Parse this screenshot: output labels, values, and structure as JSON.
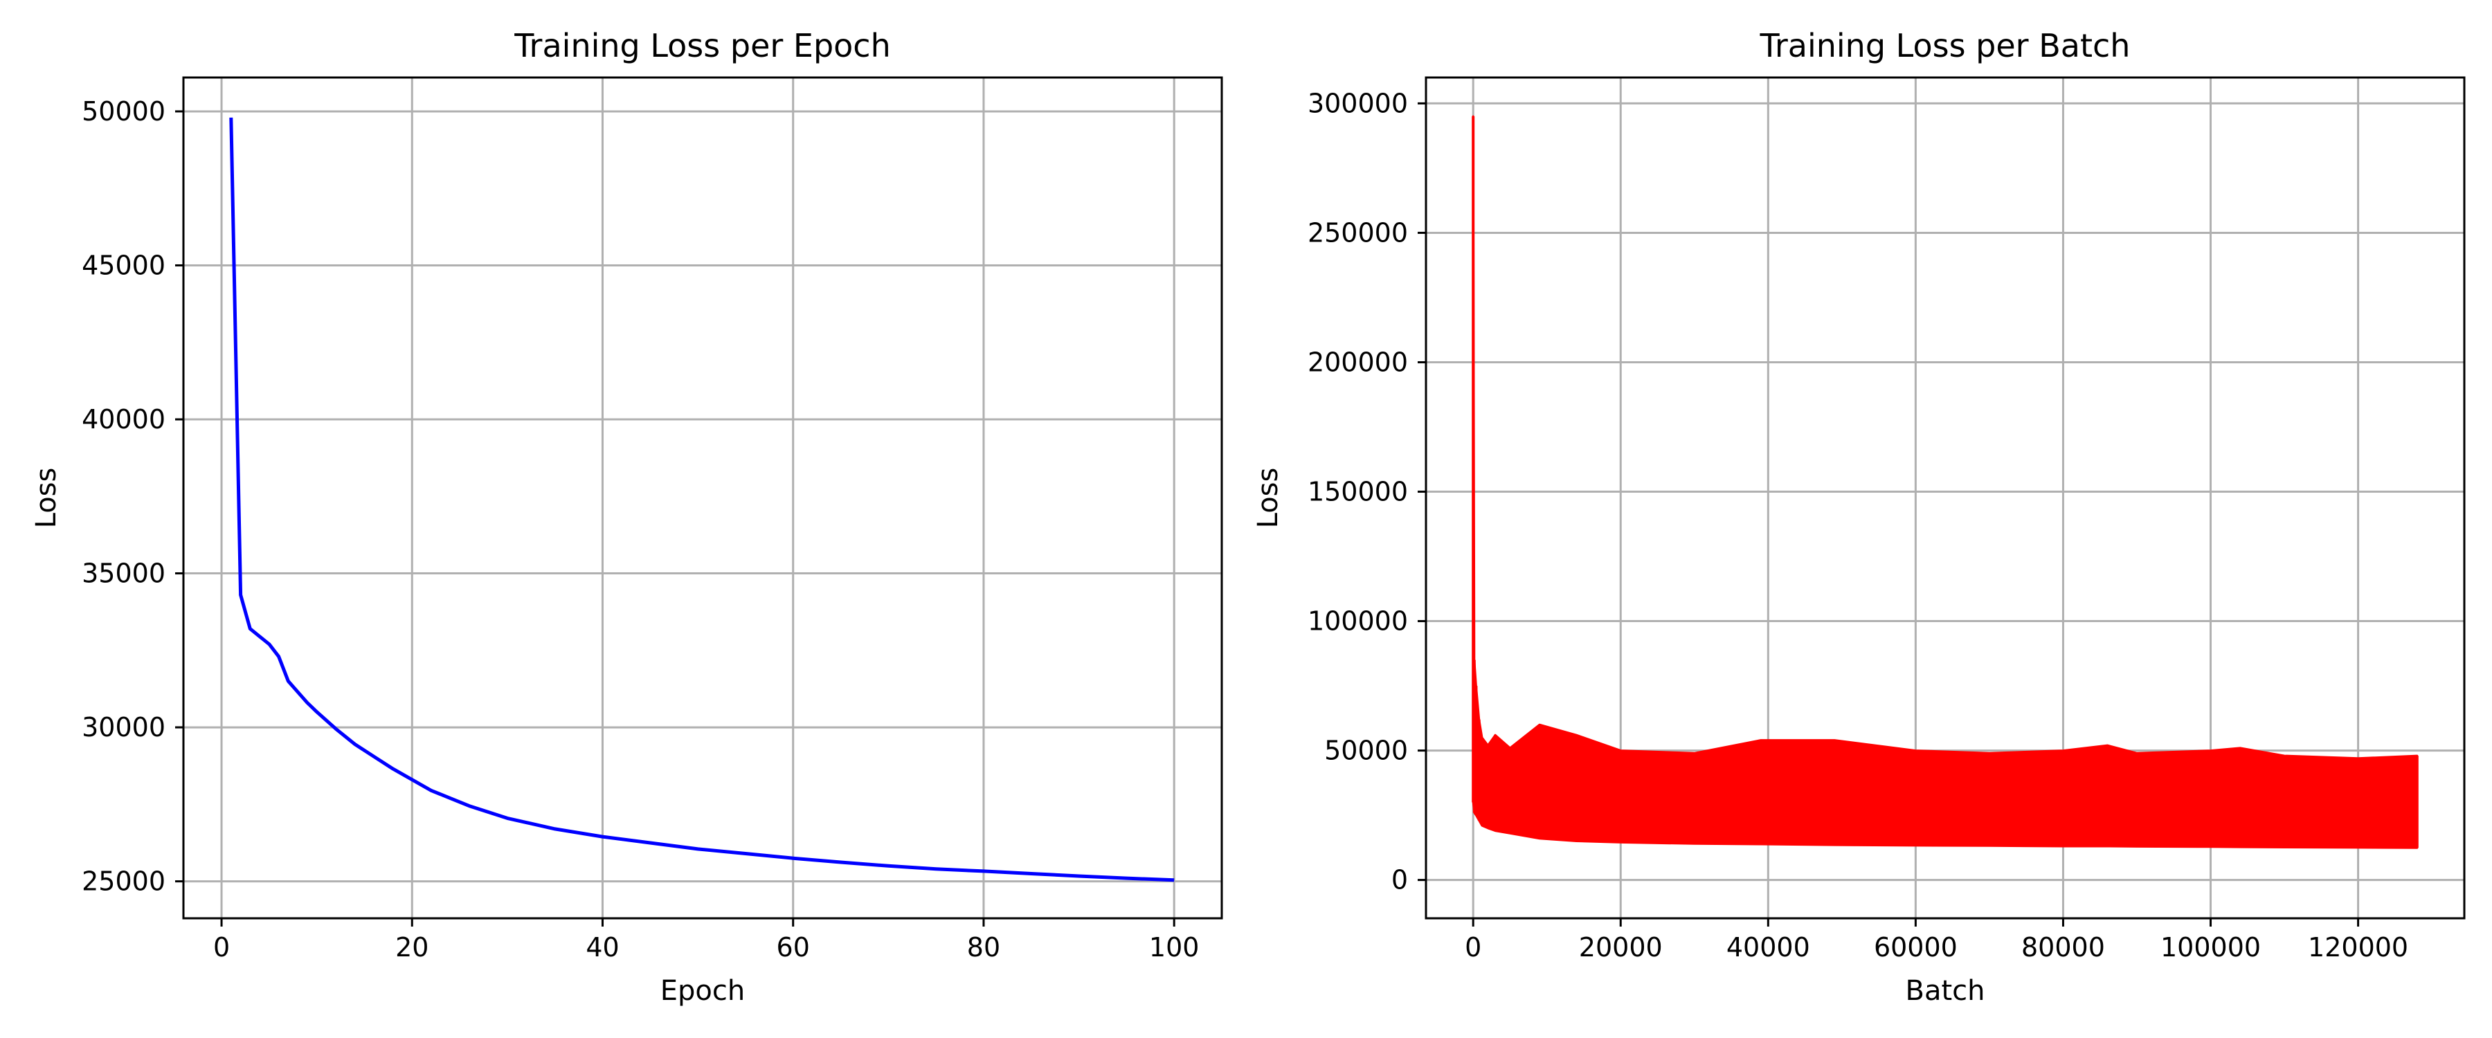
{
  "chart_data": [
    {
      "type": "line",
      "title": "Training Loss per Epoch",
      "xlabel": "Epoch",
      "ylabel": "Loss",
      "xlim": [
        -4,
        105
      ],
      "ylim": [
        23800,
        51100
      ],
      "xticks": [
        0,
        20,
        40,
        60,
        80,
        100
      ],
      "yticks": [
        25000,
        30000,
        35000,
        40000,
        45000,
        50000
      ],
      "grid": true,
      "series": [
        {
          "color": "#0000ff",
          "x": [
            1,
            2,
            3,
            4,
            5,
            6,
            7,
            8,
            9,
            10,
            12,
            14,
            16,
            18,
            20,
            22,
            24,
            26,
            28,
            30,
            35,
            40,
            45,
            50,
            55,
            60,
            65,
            70,
            75,
            80,
            85,
            90,
            95,
            100
          ],
          "y": [
            49800,
            34300,
            33200,
            32950,
            32700,
            32300,
            31500,
            31150,
            30800,
            30500,
            29950,
            29450,
            29050,
            28650,
            28300,
            27950,
            27700,
            27450,
            27250,
            27050,
            26700,
            26450,
            26250,
            26050,
            25900,
            25750,
            25620,
            25500,
            25400,
            25330,
            25250,
            25170,
            25100,
            25040
          ]
        }
      ]
    },
    {
      "type": "line",
      "title": "Training Loss per Batch",
      "xlabel": "Batch",
      "ylabel": "Loss",
      "xlim": [
        -6400,
        134400
      ],
      "ylim": [
        -14800,
        310000
      ],
      "xticks": [
        0,
        20000,
        40000,
        60000,
        80000,
        100000,
        120000
      ],
      "yticks": [
        0,
        50000,
        100000,
        150000,
        200000,
        250000,
        300000
      ],
      "grid": true,
      "series": [
        {
          "color": "#ff0000",
          "x": [
            0,
            150,
            400,
            800,
            1200,
            2000,
            3000,
            5000,
            9000,
            14000,
            20000,
            30000,
            39000,
            49000,
            60000,
            70000,
            80000,
            86000,
            90000,
            100000,
            104000,
            110000,
            120000,
            128000
          ],
          "y_min": [
            30000,
            26000,
            25000,
            23000,
            21000,
            20000,
            19000,
            18000,
            16000,
            15000,
            14500,
            14000,
            13800,
            13500,
            13300,
            13200,
            13000,
            13000,
            12900,
            12800,
            12700,
            12600,
            12500,
            12400
          ],
          "y_max": [
            295000,
            85000,
            75000,
            62000,
            55000,
            52000,
            56000,
            51000,
            60000,
            56000,
            50000,
            49000,
            54000,
            54000,
            50000,
            49000,
            50000,
            52000,
            49000,
            50000,
            51000,
            48000,
            47000,
            48000
          ]
        }
      ]
    }
  ]
}
